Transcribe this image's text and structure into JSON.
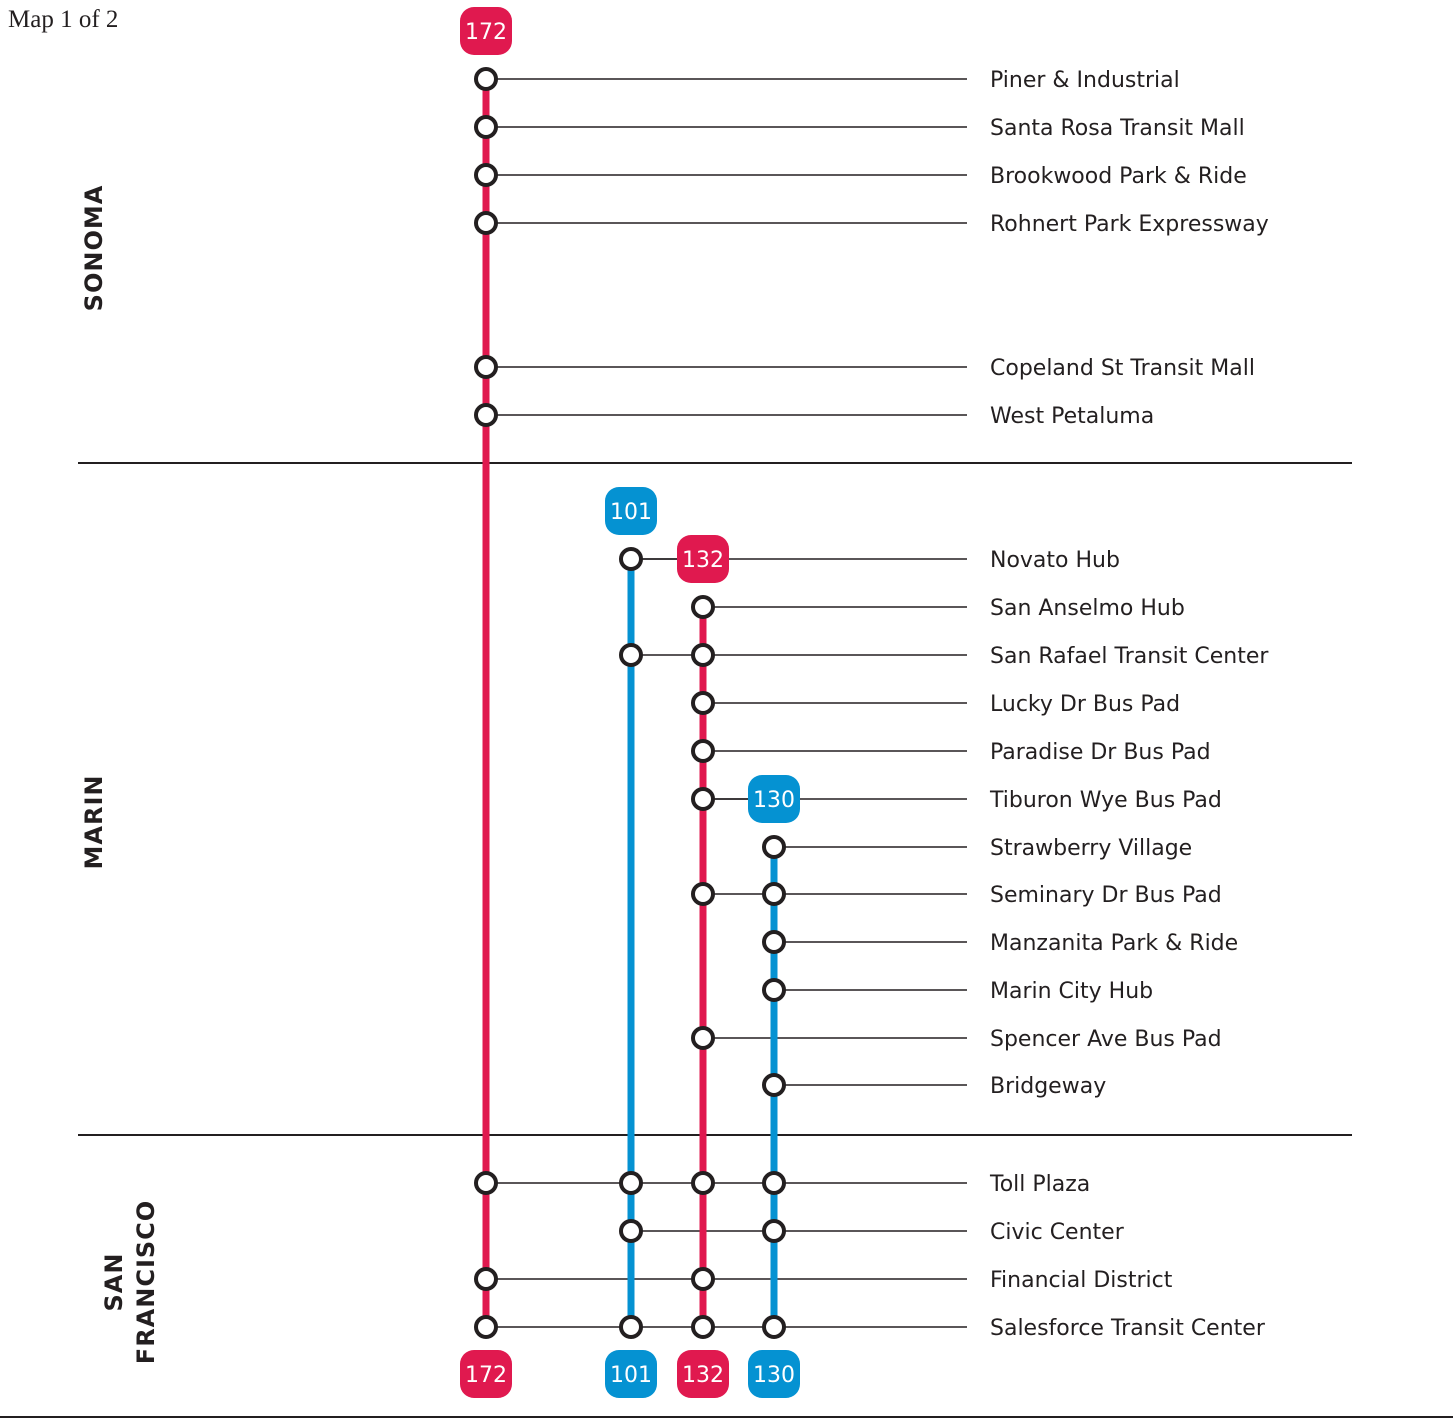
{
  "header": {
    "page_indicator": "Map 1 of 2"
  },
  "colors": {
    "red_route": "#e0194f",
    "blue_route": "#0592d2",
    "ink": "#231f20",
    "stop_fill": "#ffffff"
  },
  "regions": {
    "sonoma": [
      "SONOMA"
    ],
    "marin": [
      "MARIN"
    ],
    "san_francisco": [
      "SAN",
      "FRANCISCO"
    ]
  },
  "routes": [
    {
      "id": "172",
      "label": "172",
      "color": "red"
    },
    {
      "id": "101",
      "label": "101",
      "color": "blue"
    },
    {
      "id": "132",
      "label": "132",
      "color": "red"
    },
    {
      "id": "130",
      "label": "130",
      "color": "blue"
    }
  ],
  "stops": [
    {
      "name": "Piner & Industrial",
      "region": "SONOMA",
      "served_by": [
        "172"
      ]
    },
    {
      "name": "Santa Rosa Transit Mall",
      "region": "SONOMA",
      "served_by": [
        "172"
      ]
    },
    {
      "name": "Brookwood Park & Ride",
      "region": "SONOMA",
      "served_by": [
        "172"
      ]
    },
    {
      "name": "Rohnert Park Expressway",
      "region": "SONOMA",
      "served_by": [
        "172"
      ]
    },
    {
      "name": "Copeland St Transit Mall",
      "region": "SONOMA",
      "served_by": [
        "172"
      ]
    },
    {
      "name": "West Petaluma",
      "region": "SONOMA",
      "served_by": [
        "172"
      ]
    },
    {
      "name": "Novato Hub",
      "region": "MARIN",
      "served_by": [
        "101"
      ]
    },
    {
      "name": "San Anselmo Hub",
      "region": "MARIN",
      "served_by": [
        "132"
      ]
    },
    {
      "name": "San Rafael Transit Center",
      "region": "MARIN",
      "served_by": [
        "101",
        "132"
      ]
    },
    {
      "name": "Lucky Dr Bus Pad",
      "region": "MARIN",
      "served_by": [
        "132"
      ]
    },
    {
      "name": "Paradise Dr Bus Pad",
      "region": "MARIN",
      "served_by": [
        "132"
      ]
    },
    {
      "name": "Tiburon Wye Bus Pad",
      "region": "MARIN",
      "served_by": [
        "132"
      ]
    },
    {
      "name": "Strawberry Village",
      "region": "MARIN",
      "served_by": [
        "130"
      ]
    },
    {
      "name": "Seminary Dr Bus Pad",
      "region": "MARIN",
      "served_by": [
        "132",
        "130"
      ]
    },
    {
      "name": "Manzanita Park & Ride",
      "region": "MARIN",
      "served_by": [
        "130"
      ]
    },
    {
      "name": "Marin City Hub",
      "region": "MARIN",
      "served_by": [
        "130"
      ]
    },
    {
      "name": "Spencer Ave Bus Pad",
      "region": "MARIN",
      "served_by": [
        "132"
      ]
    },
    {
      "name": "Bridgeway",
      "region": "MARIN",
      "served_by": [
        "130"
      ]
    },
    {
      "name": "Toll Plaza",
      "region": "SAN FRANCISCO",
      "served_by": [
        "172",
        "101",
        "132",
        "130"
      ]
    },
    {
      "name": "Civic Center",
      "region": "SAN FRANCISCO",
      "served_by": [
        "101",
        "130"
      ]
    },
    {
      "name": "Financial District",
      "region": "SAN FRANCISCO",
      "served_by": [
        "172",
        "132"
      ]
    },
    {
      "name": "Salesforce Transit Center",
      "region": "SAN FRANCISCO",
      "served_by": [
        "172",
        "101",
        "132",
        "130"
      ]
    }
  ]
}
